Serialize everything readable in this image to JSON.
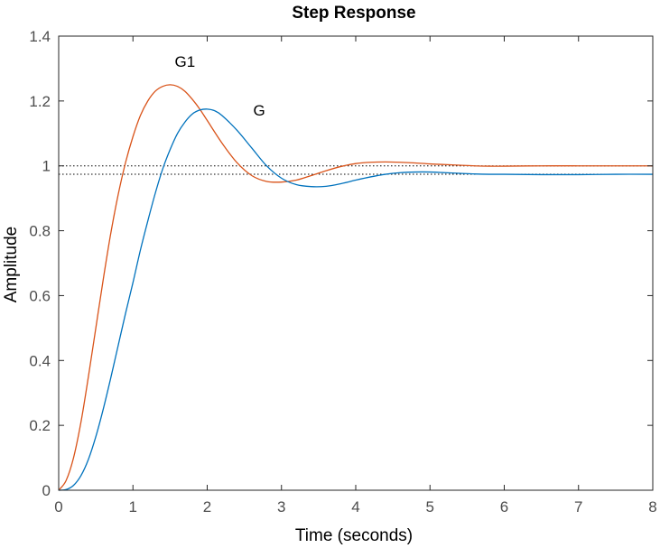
{
  "chart_data": {
    "type": "line",
    "title": "Step Response",
    "xlabel": "Time (seconds)",
    "ylabel": "Amplitude",
    "xlim": [
      0,
      8
    ],
    "ylim": [
      0,
      1.4
    ],
    "xticks": [
      0,
      1,
      2,
      3,
      4,
      5,
      6,
      7,
      8
    ],
    "yticks": [
      0,
      0.2,
      0.4,
      0.6,
      0.8,
      1,
      1.2,
      1.4
    ],
    "xtick_labels": [
      "0",
      "1",
      "2",
      "3",
      "4",
      "5",
      "6",
      "7",
      "8"
    ],
    "ytick_labels": [
      "0",
      "0.2",
      "0.4",
      "0.6",
      "0.8",
      "1",
      "1.2",
      "1.4"
    ],
    "grid": false,
    "series": [
      {
        "name": "G1",
        "color": "#d95319",
        "x": [
          0,
          0.1,
          0.2,
          0.3,
          0.4,
          0.5,
          0.6,
          0.7,
          0.8,
          0.9,
          1.0,
          1.1,
          1.2,
          1.3,
          1.4,
          1.5,
          1.6,
          1.7,
          1.8,
          1.9,
          2.0,
          2.2,
          2.4,
          2.6,
          2.8,
          3.0,
          3.2,
          3.4,
          3.6,
          3.8,
          4.0,
          4.2,
          4.4,
          4.6,
          4.8,
          5.0,
          5.2,
          5.4,
          5.6,
          5.8,
          6.0,
          6.5,
          7.0,
          7.5,
          8.0
        ],
        "y": [
          0,
          0.03,
          0.1,
          0.21,
          0.35,
          0.5,
          0.65,
          0.79,
          0.91,
          1.01,
          1.09,
          1.155,
          1.2,
          1.23,
          1.245,
          1.25,
          1.245,
          1.23,
          1.205,
          1.175,
          1.14,
          1.07,
          1.01,
          0.97,
          0.952,
          0.95,
          0.956,
          0.97,
          0.985,
          0.998,
          1.007,
          1.011,
          1.012,
          1.011,
          1.009,
          1.006,
          1.004,
          1.002,
          1.0,
          0.999,
          0.999,
          1.0,
          1.0,
          1.0,
          1.0
        ]
      },
      {
        "name": "G",
        "color": "#0072bd",
        "x": [
          0,
          0.1,
          0.2,
          0.3,
          0.4,
          0.5,
          0.6,
          0.7,
          0.8,
          0.9,
          1.0,
          1.1,
          1.2,
          1.3,
          1.4,
          1.5,
          1.6,
          1.7,
          1.8,
          1.9,
          2.0,
          2.1,
          2.2,
          2.4,
          2.6,
          2.8,
          3.0,
          3.2,
          3.4,
          3.6,
          3.8,
          4.0,
          4.2,
          4.4,
          4.6,
          4.8,
          5.0,
          5.2,
          5.4,
          5.6,
          5.8,
          6.0,
          6.5,
          7.0,
          7.5,
          8.0
        ],
        "y": [
          0,
          0.002,
          0.015,
          0.045,
          0.095,
          0.165,
          0.25,
          0.345,
          0.445,
          0.545,
          0.64,
          0.74,
          0.83,
          0.915,
          0.99,
          1.05,
          1.1,
          1.135,
          1.16,
          1.172,
          1.175,
          1.17,
          1.155,
          1.11,
          1.055,
          1.0,
          0.962,
          0.942,
          0.936,
          0.937,
          0.945,
          0.956,
          0.966,
          0.974,
          0.979,
          0.981,
          0.981,
          0.979,
          0.977,
          0.975,
          0.974,
          0.974,
          0.973,
          0.973,
          0.974,
          0.974
        ]
      }
    ],
    "reference_lines": [
      {
        "y": 1.0,
        "style": "dotted",
        "color": "#000000"
      },
      {
        "y": 0.974,
        "style": "dotted",
        "color": "#000000"
      }
    ],
    "annotations": [
      {
        "text": "G1",
        "x": 1.7,
        "y": 1.305
      },
      {
        "text": "G",
        "x": 2.7,
        "y": 1.155
      }
    ]
  }
}
